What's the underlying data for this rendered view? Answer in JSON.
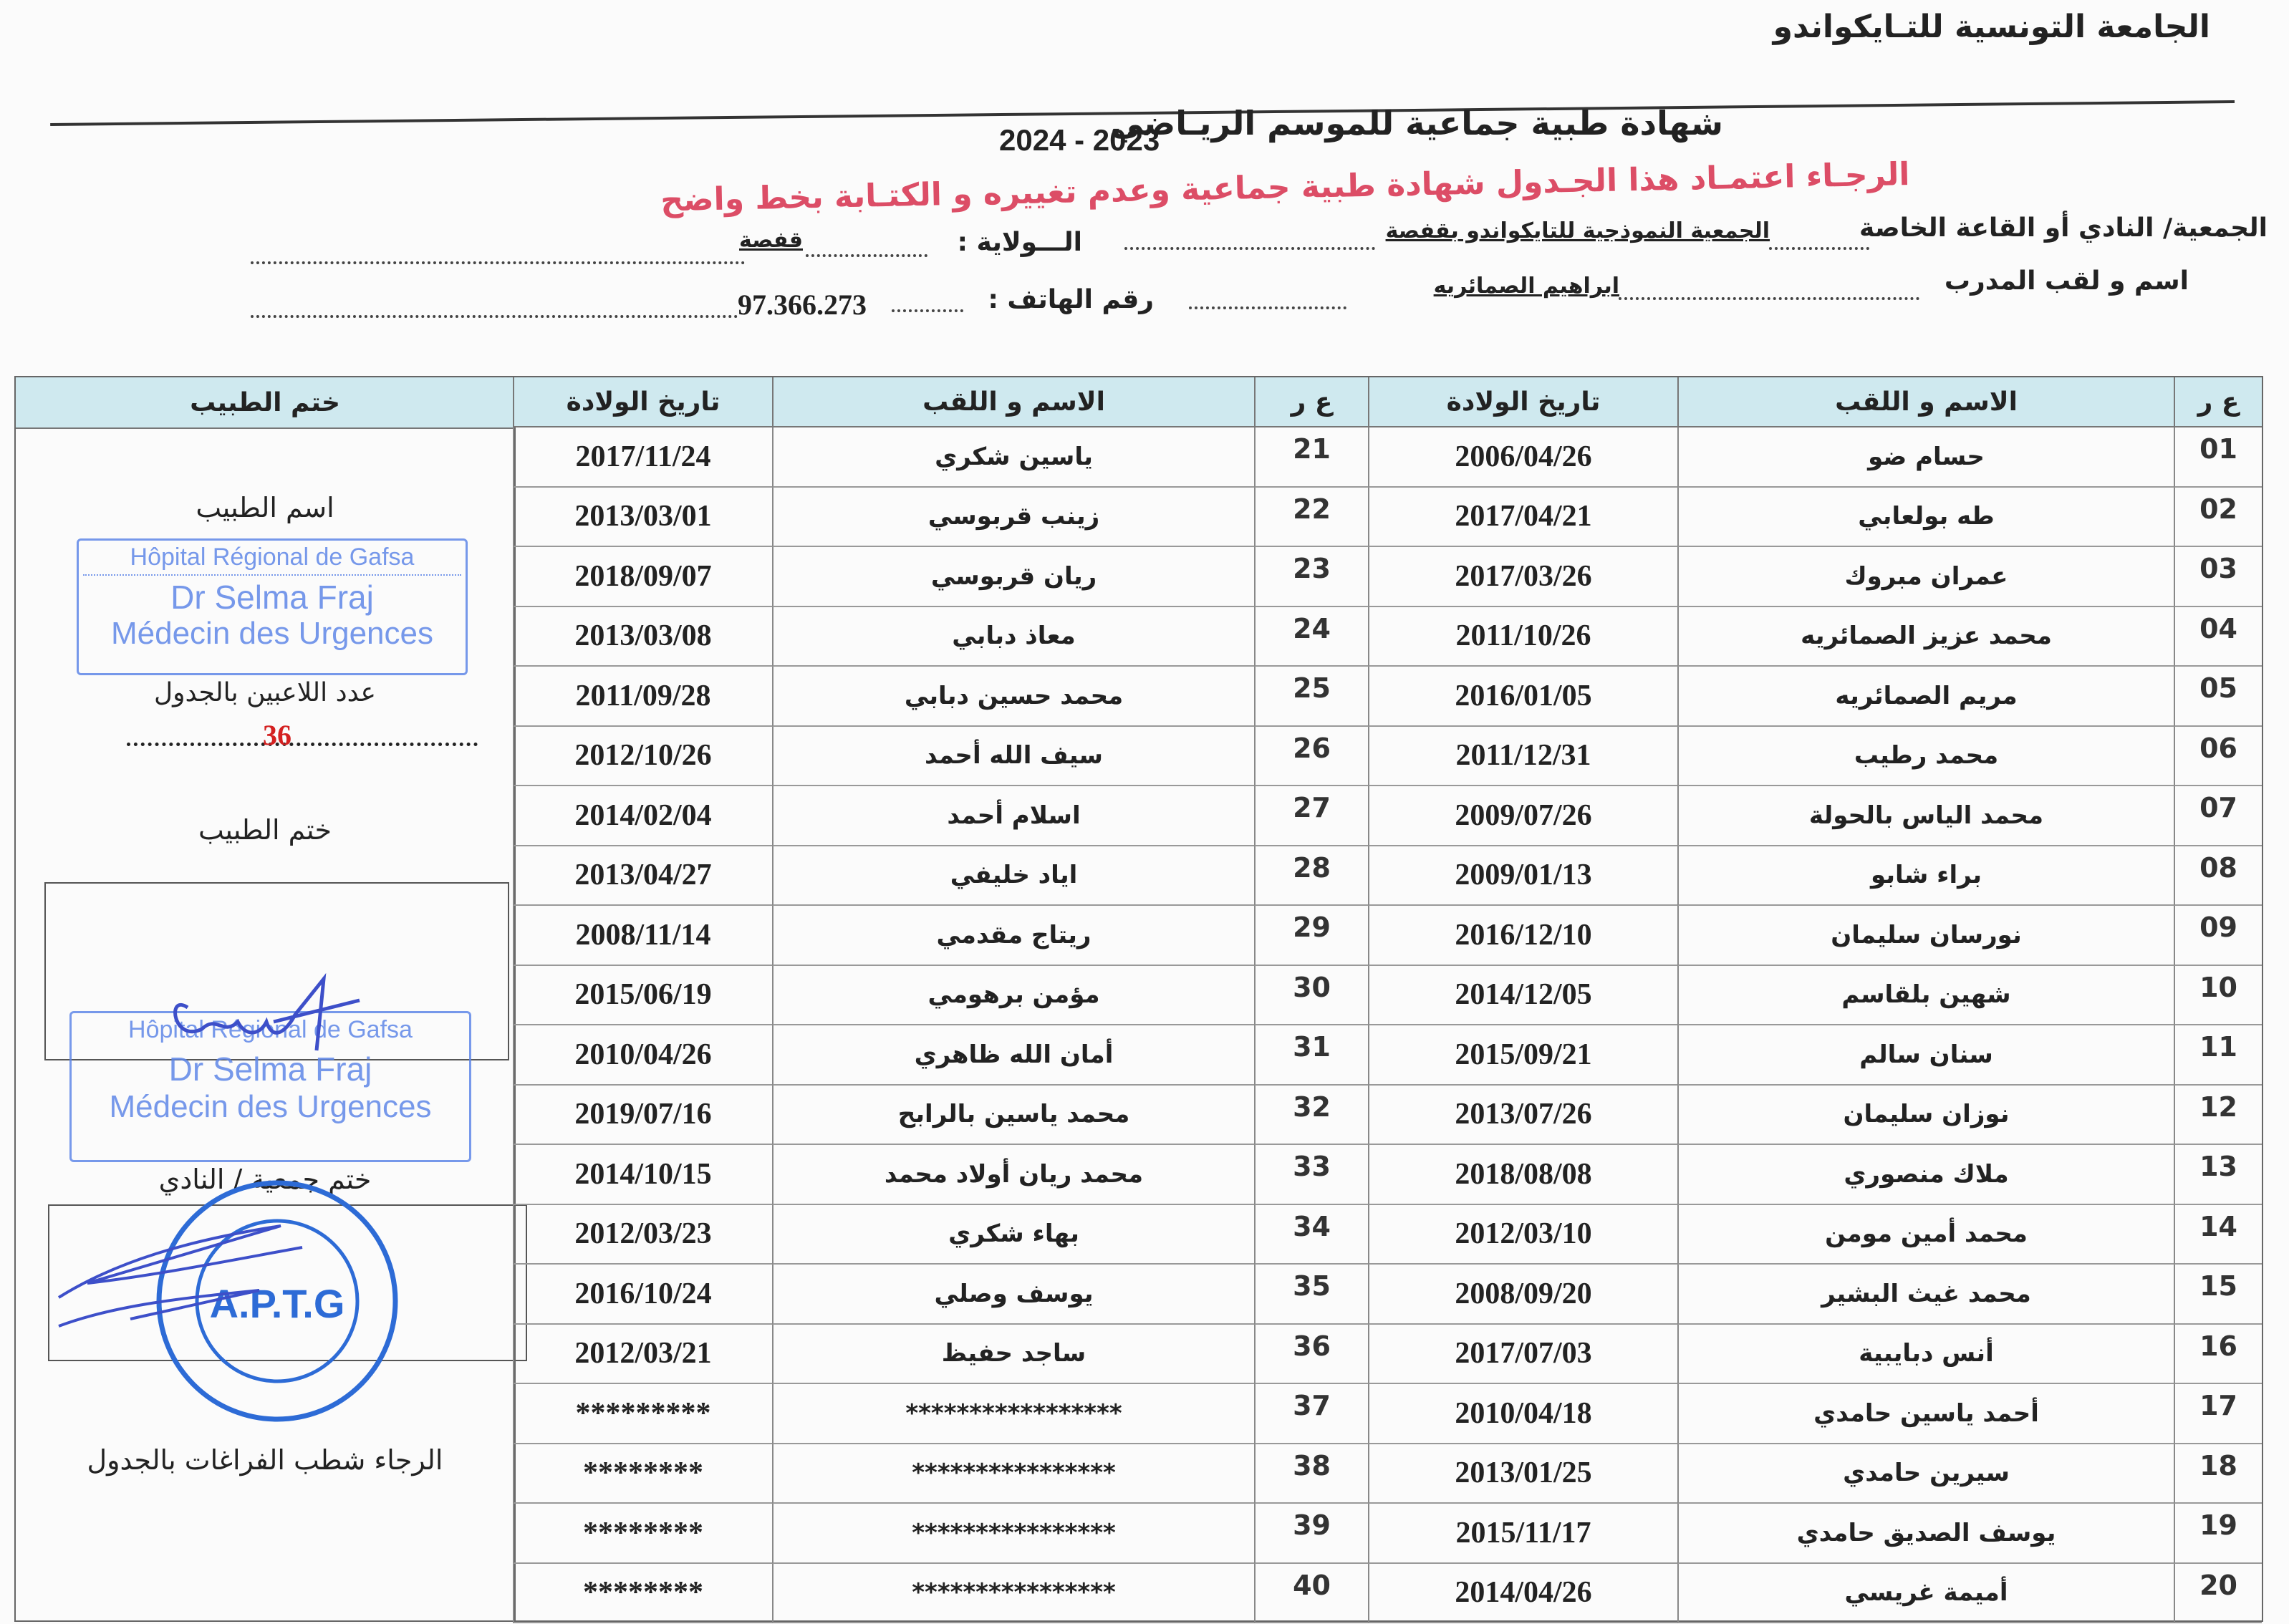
{
  "header": {
    "organization": "الجامعة التونسية للتـايكواندو",
    "title": "شهادة طبية جماعية   للموسم الريـاضي",
    "season": "2024 - 2023",
    "notice": "الرجـاء اعتمـاد هذا الجـدول  شهادة طبية جماعية وعدم تغييره و الكتـابة بخط واضح"
  },
  "fields": {
    "club_label": "الجمعية/ النادي أو القاعة الخاصة",
    "club_value": "الجمعية النموذجية للتايكواندو بقفصة",
    "state_label": "الـــولاية :",
    "state_value": "قفصة",
    "coach_label": "اسم و لقب المدرب",
    "coach_value": "ابراهيم الصمائريه",
    "phone_label": "رقم الهاتف :",
    "phone_value": "97.366.273"
  },
  "table": {
    "headers": {
      "num": "ع ر",
      "name": "الاسم و اللقب",
      "birth": "تاريخ الولادة",
      "stamp": "ختم الطبيب"
    },
    "rows_right": [
      {
        "num": "01",
        "name": "حسام ضو",
        "birth": "2006/04/26"
      },
      {
        "num": "02",
        "name": "طه بولعابي",
        "birth": "2017/04/21"
      },
      {
        "num": "03",
        "name": "عمران مبروك",
        "birth": "2017/03/26"
      },
      {
        "num": "04",
        "name": "محمد عزيز الصمائريه",
        "birth": "2011/10/26"
      },
      {
        "num": "05",
        "name": "مريم الصمائريه",
        "birth": "2016/01/05"
      },
      {
        "num": "06",
        "name": "محمد رطيب",
        "birth": "2011/12/31"
      },
      {
        "num": "07",
        "name": "محمد الياس بالحولة",
        "birth": "2009/07/26"
      },
      {
        "num": "08",
        "name": "براء شابو",
        "birth": "2009/01/13"
      },
      {
        "num": "09",
        "name": "نورسان سليمان",
        "birth": "2016/12/10"
      },
      {
        "num": "10",
        "name": "شهين بلقاسم",
        "birth": "2014/12/05"
      },
      {
        "num": "11",
        "name": "سنان سالم",
        "birth": "2015/09/21"
      },
      {
        "num": "12",
        "name": "نوزان سليمان",
        "birth": "2013/07/26"
      },
      {
        "num": "13",
        "name": "ملاك منصوري",
        "birth": "2018/08/08"
      },
      {
        "num": "14",
        "name": "محمد أمين مومن",
        "birth": "2012/03/10"
      },
      {
        "num": "15",
        "name": "محمد غيث البشير",
        "birth": "2008/09/20"
      },
      {
        "num": "16",
        "name": "أنس دبايبية",
        "birth": "2017/07/03"
      },
      {
        "num": "17",
        "name": "أحمد ياسين حامدي",
        "birth": "2010/04/18"
      },
      {
        "num": "18",
        "name": "سيرين حامدي",
        "birth": "2013/01/25"
      },
      {
        "num": "19",
        "name": "يوسف الصديق حامدي",
        "birth": "2015/11/17"
      },
      {
        "num": "20",
        "name": "أميمة غريسي",
        "birth": "2014/04/26"
      }
    ],
    "rows_left": [
      {
        "num": "21",
        "name": "ياسين شكري",
        "birth": "2017/11/24"
      },
      {
        "num": "22",
        "name": "زينب قربوسي",
        "birth": "2013/03/01"
      },
      {
        "num": "23",
        "name": "ريان قربوسي",
        "birth": "2018/09/07"
      },
      {
        "num": "24",
        "name": "معاذ دبابي",
        "birth": "2013/03/08"
      },
      {
        "num": "25",
        "name": "محمد حسين دبابي",
        "birth": "2011/09/28"
      },
      {
        "num": "26",
        "name": "سيف الله أحمد",
        "birth": "2012/10/26"
      },
      {
        "num": "27",
        "name": "اسلام أحمد",
        "birth": "2014/02/04"
      },
      {
        "num": "28",
        "name": "اياد خليفي",
        "birth": "2013/04/27"
      },
      {
        "num": "29",
        "name": "ريتاج مقدمي",
        "birth": "2008/11/14"
      },
      {
        "num": "30",
        "name": "مؤمن برهومي",
        "birth": "2015/06/19"
      },
      {
        "num": "31",
        "name": "أمان الله ظاهري",
        "birth": "2010/04/26"
      },
      {
        "num": "32",
        "name": "محمد ياسين بالرابح",
        "birth": "2019/07/16"
      },
      {
        "num": "33",
        "name": "محمد ريان أولاد محمد",
        "birth": "2014/10/15"
      },
      {
        "num": "34",
        "name": "بهاء شكري",
        "birth": "2012/03/23"
      },
      {
        "num": "35",
        "name": "يوسف وصلي",
        "birth": "2016/10/24"
      },
      {
        "num": "36",
        "name": "ساجد حفيظ",
        "birth": "2012/03/21"
      },
      {
        "num": "37",
        "name": "*****************",
        "birth": "*********"
      },
      {
        "num": "38",
        "name": "****************",
        "birth": "********"
      },
      {
        "num": "39",
        "name": "****************",
        "birth": "********"
      },
      {
        "num": "40",
        "name": "****************",
        "birth": "********"
      }
    ]
  },
  "stamp_column": {
    "doctor_name_label": "اسم الطبيب",
    "player_count_label": "عدد اللاعبين بالجدول",
    "player_count": "36",
    "doctor_stamp_label": "ختم الطبيب",
    "club_stamp_label": "ختم جمعية / النادي",
    "strike_note": "الرجاء شطب  الفراغات بالجدول",
    "hospital_stamp": {
      "line1": "Hôpital Régional de Gafsa",
      "line2": "Dr Selma Fraj",
      "line3": "Médecin des Urgences"
    },
    "club_seal_text": "A.P.T.G",
    "ink_color": "#5f87e8",
    "accent_red": "#dc4d66"
  }
}
